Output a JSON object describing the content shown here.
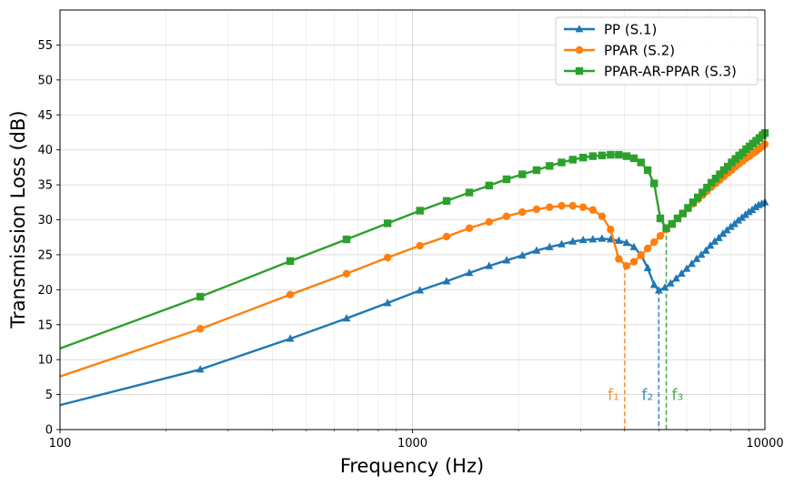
{
  "chart_data": {
    "type": "line",
    "xlabel": "Frequency (Hz)",
    "ylabel": "Transmission Loss (dB)",
    "xscale": "log",
    "xlim": [
      100,
      10000
    ],
    "ylim": [
      0,
      60
    ],
    "xticks": [
      100,
      1000,
      10000
    ],
    "xtick_labels": [
      "100",
      "1000",
      "10000"
    ],
    "yticks": [
      0,
      5,
      10,
      15,
      20,
      25,
      30,
      35,
      40,
      45,
      50,
      55
    ],
    "ytick_labels": [
      "0",
      "5",
      "10",
      "15",
      "20",
      "25",
      "30",
      "35",
      "40",
      "45",
      "50",
      "55"
    ],
    "grid": true,
    "legend_position": "top-right",
    "series": [
      {
        "name": "PP (S.1)",
        "color": "#1f77b4",
        "marker": "triangle",
        "x": [
          100,
          250,
          450,
          650,
          850,
          1050,
          1250,
          1450,
          1650,
          1850,
          2050,
          2250,
          2450,
          2650,
          2850,
          3050,
          3250,
          3450,
          3650,
          3850,
          4050,
          4250,
          4450,
          4650,
          4850,
          5000,
          5200,
          5400,
          5600,
          5800,
          6000,
          6200,
          6400,
          6600,
          6800,
          7000,
          7200,
          7400,
          7600,
          7800,
          8000,
          8200,
          8400,
          8600,
          8800,
          9000,
          9200,
          9400,
          9600,
          9800,
          10000
        ],
        "y": [
          3.5,
          8.6,
          13.0,
          15.9,
          18.1,
          19.9,
          21.2,
          22.4,
          23.4,
          24.2,
          24.9,
          25.6,
          26.1,
          26.5,
          26.9,
          27.1,
          27.2,
          27.3,
          27.2,
          27.0,
          26.7,
          26.1,
          25.0,
          23.1,
          20.7,
          19.9,
          20.3,
          20.9,
          21.6,
          22.3,
          23.0,
          23.7,
          24.4,
          25.0,
          25.6,
          26.3,
          26.9,
          27.4,
          28.0,
          28.5,
          29.0,
          29.4,
          29.9,
          30.3,
          30.7,
          31.1,
          31.4,
          31.8,
          32.1,
          32.3,
          32.5
        ]
      },
      {
        "name": "PPAR (S.2)",
        "color": "#ff7f0e",
        "marker": "circle",
        "x": [
          100,
          250,
          450,
          650,
          850,
          1050,
          1250,
          1450,
          1650,
          1850,
          2050,
          2250,
          2450,
          2650,
          2850,
          3050,
          3250,
          3450,
          3650,
          3850,
          4050,
          4250,
          4450,
          4650,
          4850,
          5050,
          5250,
          5450,
          5650,
          5850,
          6050,
          6250,
          6450,
          6650,
          6850,
          7050,
          7250,
          7450,
          7650,
          7850,
          8050,
          8250,
          8450,
          8650,
          8850,
          9050,
          9250,
          9450,
          9650,
          9850,
          10000
        ],
        "y": [
          7.6,
          14.4,
          19.3,
          22.3,
          24.6,
          26.3,
          27.6,
          28.8,
          29.7,
          30.5,
          31.1,
          31.5,
          31.8,
          32.0,
          32.0,
          31.8,
          31.4,
          30.5,
          28.6,
          24.4,
          23.4,
          24.0,
          24.9,
          25.9,
          26.8,
          27.7,
          28.6,
          29.4,
          30.2,
          30.9,
          31.6,
          32.3,
          32.9,
          33.5,
          34.1,
          34.7,
          35.2,
          35.7,
          36.2,
          36.7,
          37.1,
          37.6,
          38.0,
          38.4,
          38.8,
          39.1,
          39.5,
          39.8,
          40.2,
          40.5,
          40.8
        ]
      },
      {
        "name": "PPAR-AR-PPAR (S.3)",
        "color": "#2ca02c",
        "marker": "square",
        "x": [
          100,
          250,
          450,
          650,
          850,
          1050,
          1250,
          1450,
          1650,
          1850,
          2050,
          2250,
          2450,
          2650,
          2850,
          3050,
          3250,
          3450,
          3650,
          3850,
          4050,
          4250,
          4450,
          4650,
          4850,
          5050,
          5250,
          5450,
          5650,
          5850,
          6050,
          6250,
          6450,
          6650,
          6850,
          7050,
          7250,
          7450,
          7650,
          7850,
          8050,
          8250,
          8450,
          8650,
          8850,
          9050,
          9250,
          9450,
          9650,
          9850,
          10000
        ],
        "y": [
          11.6,
          19.0,
          24.1,
          27.2,
          29.5,
          31.3,
          32.7,
          33.9,
          34.9,
          35.8,
          36.5,
          37.1,
          37.7,
          38.2,
          38.6,
          38.9,
          39.1,
          39.2,
          39.3,
          39.3,
          39.1,
          38.8,
          38.2,
          37.1,
          35.2,
          30.2,
          28.8,
          29.4,
          30.2,
          30.9,
          31.7,
          32.5,
          33.2,
          33.9,
          34.6,
          35.3,
          35.9,
          36.5,
          37.1,
          37.6,
          38.2,
          38.7,
          39.2,
          39.6,
          40.1,
          40.5,
          40.9,
          41.3,
          41.7,
          42.1,
          42.4
        ]
      }
    ],
    "annotations": [
      {
        "label": "f₁",
        "x": 4000,
        "y_end": 23.4,
        "color": "#ff7f0e"
      },
      {
        "label": "f₂",
        "x": 5000,
        "y_end": 19.9,
        "color": "#1f77b4"
      },
      {
        "label": "f₃",
        "x": 5250,
        "y_end": 28.8,
        "color": "#2ca02c"
      }
    ]
  }
}
